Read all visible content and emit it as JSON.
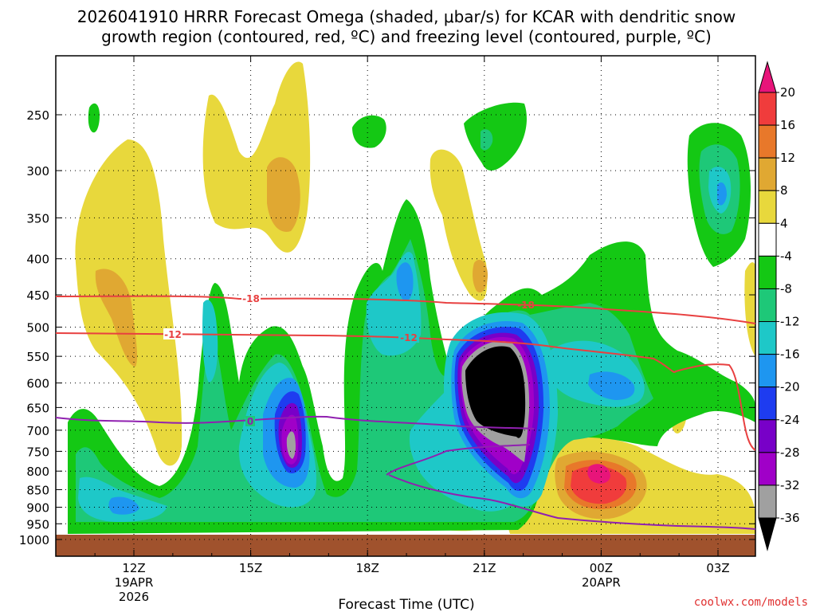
{
  "chart_data": {
    "type": "contour",
    "title_line1": "2026041910 HRRR Forecast Omega (shaded, μbar/s) for KCAR with dendritic snow",
    "title_line2": "growth region (contoured, red, ºC) and freezing level (contoured, purple, ºC)",
    "xlabel": "Forecast Time (UTC)",
    "credit": "coolwx.com/models",
    "y_ticks": [
      "250",
      "300",
      "350",
      "400",
      "450",
      "500",
      "550",
      "600",
      "650",
      "700",
      "750",
      "800",
      "850",
      "900",
      "950",
      "1000"
    ],
    "y_values": [
      250,
      300,
      350,
      400,
      450,
      500,
      550,
      600,
      650,
      700,
      750,
      800,
      850,
      900,
      950,
      1000
    ],
    "x_ticks": [
      {
        "label": "12Z",
        "sub1": "19APR",
        "sub2": "2026",
        "hour": 12
      },
      {
        "label": "15Z",
        "sub1": "",
        "sub2": "",
        "hour": 15
      },
      {
        "label": "18Z",
        "sub1": "",
        "sub2": "",
        "hour": 18
      },
      {
        "label": "21Z",
        "sub1": "",
        "sub2": "",
        "hour": 21
      },
      {
        "label": "00Z",
        "sub1": "20APR",
        "sub2": "",
        "hour": 24
      },
      {
        "label": "03Z",
        "sub1": "",
        "sub2": "",
        "hour": 27
      }
    ],
    "x_range_hours": [
      10,
      28
    ],
    "y_range_hpa": [
      200,
      1000
    ],
    "colorbar": {
      "labels": [
        "20",
        "16",
        "12",
        "8",
        "4",
        "-4",
        "-8",
        "-12",
        "-16",
        "-20",
        "-24",
        "-28",
        "-32",
        "-36"
      ],
      "bounds": [
        20,
        16,
        12,
        8,
        4,
        -4,
        -8,
        -12,
        -16,
        -20,
        -24,
        -28,
        -32,
        -36
      ],
      "colors": [
        "#f03c3c",
        "#e8782a",
        "#e0a832",
        "#e8d83c",
        "#ffffff",
        "#14c814",
        "#1ec878",
        "#1ec8c8",
        "#1e96f0",
        "#1e3cf0",
        "#7800c8",
        "#a000c8",
        "#a0a0a0",
        "#000000"
      ],
      "top_color": "#e8147a",
      "bottom_color": "#000000"
    },
    "contour_labels": [
      {
        "text": "-18",
        "color": "#e84040"
      },
      {
        "text": "-12",
        "color": "#e84040"
      },
      {
        "text": "-12",
        "color": "#e84040"
      },
      {
        "text": "-18",
        "color": "#e84040"
      },
      {
        "text": "0",
        "color": "#9020b0"
      }
    ],
    "ground_color": "#a0522d"
  }
}
